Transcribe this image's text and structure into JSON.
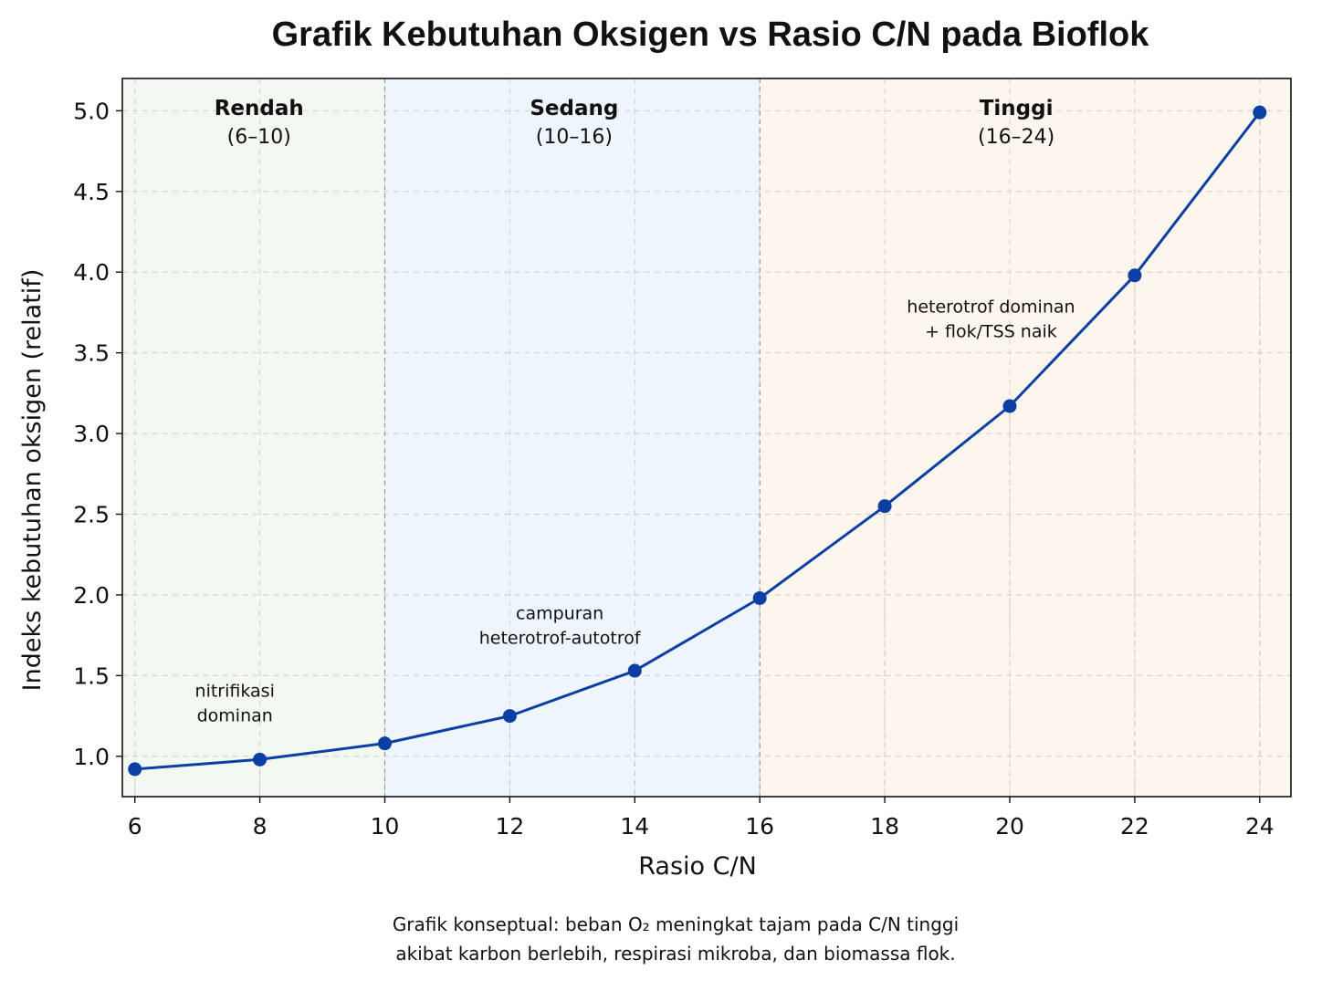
{
  "chart_data": {
    "type": "line",
    "title": "Grafik Kebutuhan Oksigen vs Rasio C/N pada Bioflok",
    "xlabel": "Rasio C/N",
    "ylabel": "Indeks kebutuhan oksigen (relatif)",
    "xlim": [
      5.8,
      24.5
    ],
    "ylim": [
      0.75,
      5.2
    ],
    "x_ticks": [
      6,
      8,
      10,
      12,
      14,
      16,
      18,
      20,
      22,
      24
    ],
    "y_ticks": [
      1.0,
      1.5,
      2.0,
      2.5,
      3.0,
      3.5,
      4.0,
      4.5,
      5.0
    ],
    "grid": true,
    "series": [
      {
        "x": [
          6,
          8,
          10,
          12,
          14,
          16,
          18,
          20,
          22,
          24
        ],
        "y": [
          0.92,
          0.98,
          1.08,
          1.25,
          1.53,
          1.98,
          2.55,
          3.17,
          3.98,
          4.99
        ]
      }
    ],
    "regions": [
      {
        "name": "Rendah",
        "range_label": "(6–10)",
        "from": 5.8,
        "to": 10,
        "color": "#f3f9f1"
      },
      {
        "name": "Sedang",
        "range_label": "(10–16)",
        "from": 10,
        "to": 16,
        "color": "#eef5fd"
      },
      {
        "name": "Tinggi",
        "range_label": "(16–24)",
        "from": 16,
        "to": 24.5,
        "color": "#fdf6ef"
      }
    ],
    "annotations": [
      {
        "lines": [
          "nitrifikasi",
          "dominan"
        ],
        "x": 7.6,
        "y": 1.37
      },
      {
        "lines": [
          "campuran",
          "heterotrof-autotrof"
        ],
        "x": 12.8,
        "y": 1.85
      },
      {
        "lines": [
          "heterotrof dominan",
          "+ flok/TSS naik"
        ],
        "x": 19.7,
        "y": 3.75
      }
    ],
    "caption": {
      "line1": "Grafik konseptual: beban O₂ meningkat tajam pada C/N tinggi",
      "line2": "akibat karbon berlebih, respirasi mikroba, dan biomassa flok."
    },
    "colors": {
      "line": "#0b3fa3",
      "marker": "#0b3fa3",
      "axes": "#111111"
    }
  }
}
